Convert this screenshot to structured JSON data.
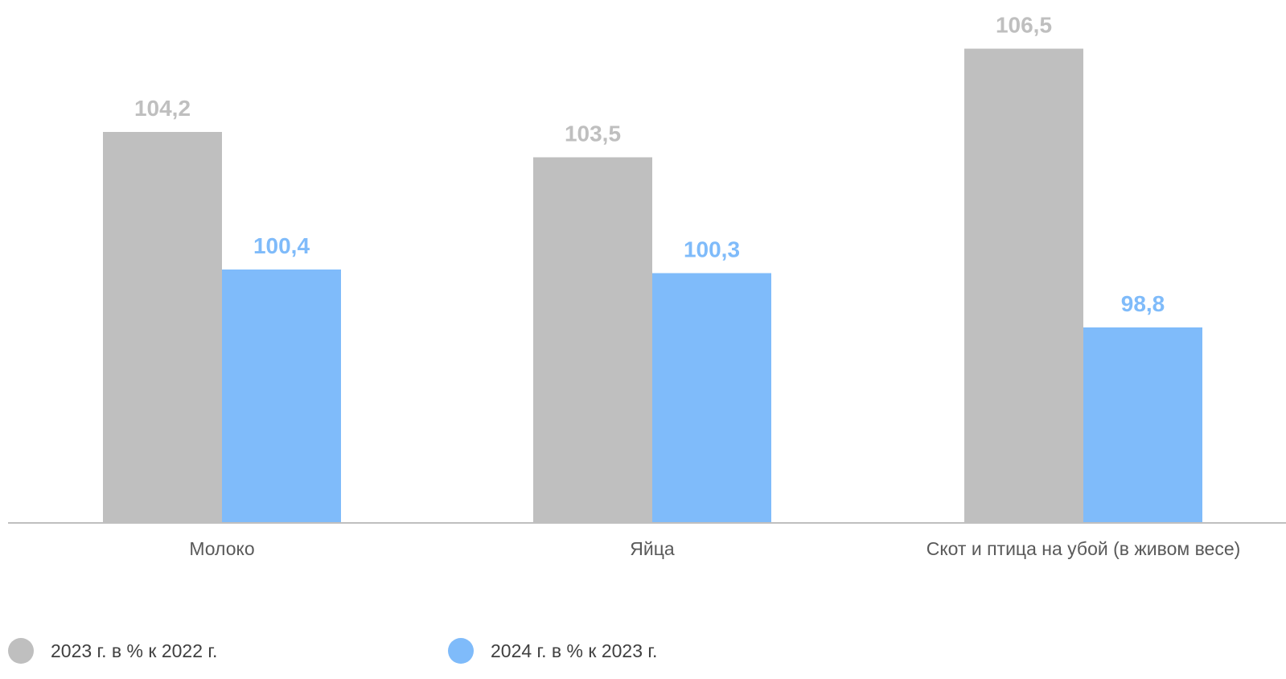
{
  "chart_data": {
    "type": "bar",
    "categories": [
      "Молоко",
      "Яйца",
      "Скот и птица на убой (в живом весе)"
    ],
    "series": [
      {
        "name": "2023 г. в % к 2022 г.",
        "values": [
          104.2,
          103.5,
          106.5
        ],
        "labels": [
          "104,2",
          "103,5",
          "106,5"
        ],
        "color": "#bfbfbf"
      },
      {
        "name": "2024 г. в % к 2023 г.",
        "values": [
          100.4,
          100.3,
          98.8
        ],
        "labels": [
          "100,4",
          "100,3",
          "98,8"
        ],
        "color": "#7fbbfa"
      }
    ],
    "ylim": [
      93.4,
      107
    ],
    "grid": false,
    "legend_position": "bottom-left"
  }
}
